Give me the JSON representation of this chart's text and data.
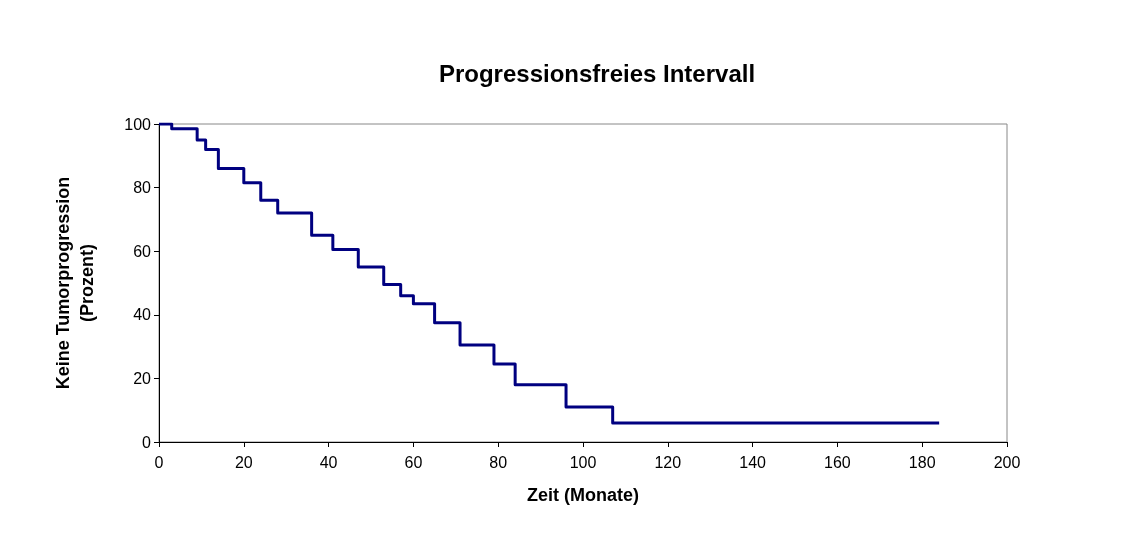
{
  "chart_data": {
    "type": "step",
    "title": "Progressionsfreies Intervall",
    "xlabel": "Zeit (Monate)",
    "ylabel": "Keine Tumorprogression\n(Prozent)",
    "x": [
      0,
      3,
      9,
      11,
      14,
      20,
      24,
      28,
      36,
      41,
      47,
      53,
      57,
      60,
      65,
      71,
      79,
      84,
      96,
      107,
      184
    ],
    "series": [
      {
        "color": "#000080",
        "values": [
          100,
          98.5,
          95,
          92,
          86,
          81.5,
          76,
          72,
          65,
          60.5,
          55,
          49.5,
          46,
          43.5,
          37.5,
          30.5,
          24.5,
          18,
          11,
          6,
          6
        ]
      }
    ],
    "xlim": [
      0,
      200
    ],
    "xticks": [
      0,
      20,
      40,
      60,
      80,
      100,
      120,
      140,
      160,
      180,
      200
    ],
    "ylim": [
      0,
      100
    ],
    "yticks": [
      0,
      20,
      40,
      60,
      80,
      100
    ],
    "grid": false,
    "marker": "none",
    "line_style": "solid"
  }
}
